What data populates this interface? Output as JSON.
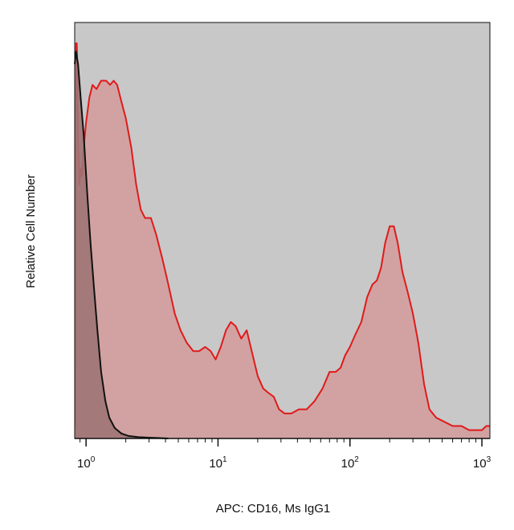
{
  "chart_data": {
    "type": "area",
    "title": "",
    "xlabel": "APC: CD16, Ms IgG1",
    "ylabel": "Relative Cell Number",
    "x_scale": "log",
    "xlim": [
      0.82,
      1150
    ],
    "ylim": [
      0,
      1
    ],
    "y_ticks_labeled": false,
    "major_ticks": [
      {
        "value": 1,
        "base": "10",
        "exp": "0"
      },
      {
        "value": 10,
        "base": "10",
        "exp": "1"
      },
      {
        "value": 100,
        "base": "10",
        "exp": "2"
      },
      {
        "value": 1000,
        "base": "10",
        "exp": "3"
      }
    ],
    "grid": false,
    "legend": "none",
    "colors": {
      "plot_background": "#c8c8c8",
      "stained_line": "#e01a1a",
      "stained_fill": "#d49b9b",
      "control_line": "#111111",
      "control_fill": "#9e7474"
    },
    "series": [
      {
        "color": "#e01a1a",
        "points": [
          [
            0.83,
            0.03
          ],
          [
            0.84,
            0.95
          ],
          [
            0.85,
            0.95
          ],
          [
            0.86,
            0.88
          ],
          [
            0.87,
            0.72
          ],
          [
            0.89,
            0.61
          ],
          [
            0.91,
            0.65
          ],
          [
            0.93,
            0.63
          ],
          [
            0.96,
            0.7
          ],
          [
            1.0,
            0.76
          ],
          [
            1.06,
            0.82
          ],
          [
            1.12,
            0.85
          ],
          [
            1.2,
            0.84
          ],
          [
            1.3,
            0.86
          ],
          [
            1.42,
            0.86
          ],
          [
            1.52,
            0.85
          ],
          [
            1.62,
            0.86
          ],
          [
            1.72,
            0.85
          ],
          [
            1.85,
            0.81
          ],
          [
            2.0,
            0.77
          ],
          [
            2.2,
            0.7
          ],
          [
            2.4,
            0.61
          ],
          [
            2.6,
            0.55
          ],
          [
            2.8,
            0.53
          ],
          [
            3.1,
            0.53
          ],
          [
            3.4,
            0.49
          ],
          [
            3.8,
            0.43
          ],
          [
            4.2,
            0.37
          ],
          [
            4.7,
            0.3
          ],
          [
            5.2,
            0.26
          ],
          [
            5.8,
            0.23
          ],
          [
            6.5,
            0.21
          ],
          [
            7.2,
            0.21
          ],
          [
            8.0,
            0.22
          ],
          [
            8.8,
            0.21
          ],
          [
            9.6,
            0.19
          ],
          [
            10.5,
            0.22
          ],
          [
            11.5,
            0.26
          ],
          [
            12.5,
            0.28
          ],
          [
            13.6,
            0.27
          ],
          [
            15.0,
            0.24
          ],
          [
            16.5,
            0.26
          ],
          [
            18.0,
            0.21
          ],
          [
            20.0,
            0.15
          ],
          [
            22.0,
            0.12
          ],
          [
            24.0,
            0.11
          ],
          [
            26.5,
            0.1
          ],
          [
            29.0,
            0.07
          ],
          [
            32.0,
            0.06
          ],
          [
            36.0,
            0.06
          ],
          [
            41.0,
            0.07
          ],
          [
            47.0,
            0.07
          ],
          [
            54.0,
            0.09
          ],
          [
            62.0,
            0.12
          ],
          [
            70.0,
            0.16
          ],
          [
            78.0,
            0.16
          ],
          [
            85.0,
            0.17
          ],
          [
            92.0,
            0.2
          ],
          [
            100.0,
            0.22
          ],
          [
            110.0,
            0.25
          ],
          [
            122.0,
            0.28
          ],
          [
            135.0,
            0.34
          ],
          [
            148.0,
            0.37
          ],
          [
            160.0,
            0.38
          ],
          [
            172.0,
            0.41
          ],
          [
            185.0,
            0.47
          ],
          [
            200.0,
            0.51
          ],
          [
            215.0,
            0.51
          ],
          [
            230.0,
            0.47
          ],
          [
            250.0,
            0.4
          ],
          [
            275.0,
            0.35
          ],
          [
            300.0,
            0.3
          ],
          [
            330.0,
            0.23
          ],
          [
            365.0,
            0.13
          ],
          [
            400.0,
            0.07
          ],
          [
            450.0,
            0.05
          ],
          [
            520.0,
            0.04
          ],
          [
            600.0,
            0.03
          ],
          [
            700.0,
            0.03
          ],
          [
            800.0,
            0.02
          ],
          [
            900.0,
            0.02
          ],
          [
            1000.0,
            0.02
          ],
          [
            1080.0,
            0.03
          ],
          [
            1150.0,
            0.03
          ]
        ]
      },
      {
        "color": "#111111",
        "points": [
          [
            0.82,
            0.9
          ],
          [
            0.84,
            0.93
          ],
          [
            0.87,
            0.9
          ],
          [
            0.91,
            0.82
          ],
          [
            0.96,
            0.73
          ],
          [
            1.02,
            0.59
          ],
          [
            1.08,
            0.47
          ],
          [
            1.15,
            0.36
          ],
          [
            1.22,
            0.26
          ],
          [
            1.3,
            0.16
          ],
          [
            1.4,
            0.09
          ],
          [
            1.5,
            0.05
          ],
          [
            1.65,
            0.025
          ],
          [
            1.85,
            0.012
          ],
          [
            2.1,
            0.006
          ],
          [
            2.5,
            0.003
          ],
          [
            3.0,
            0.002
          ],
          [
            3.6,
            0.001
          ],
          [
            4.2,
            0.0
          ]
        ]
      }
    ]
  }
}
